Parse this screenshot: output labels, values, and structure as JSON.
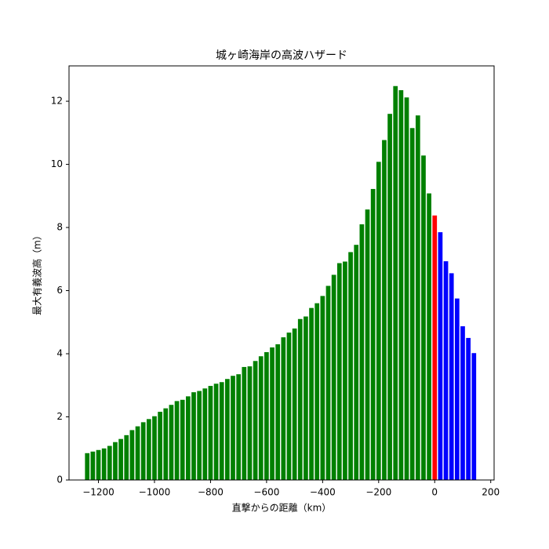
{
  "chart_data": {
    "type": "bar",
    "title": "城ヶ崎海岸の高波ハザード",
    "x_label": "直撃からの距離（km）",
    "y_label": "最大有義波高（m）",
    "series": [
      {
        "name": "green",
        "color": "#008000",
        "x": [
          -1240,
          -1220,
          -1200,
          -1180,
          -1160,
          -1140,
          -1120,
          -1100,
          -1080,
          -1060,
          -1040,
          -1020,
          -1000,
          -980,
          -960,
          -940,
          -920,
          -900,
          -880,
          -860,
          -840,
          -820,
          -800,
          -780,
          -760,
          -740,
          -720,
          -700,
          -680,
          -660,
          -640,
          -620,
          -600,
          -580,
          -560,
          -540,
          -520,
          -500,
          -480,
          -460,
          -440,
          -420,
          -400,
          -380,
          -360,
          -340,
          -320,
          -300,
          -280,
          -260,
          -240,
          -220,
          -200,
          -180,
          -160,
          -140,
          -120,
          -100,
          -80,
          -60,
          -40,
          -20
        ],
        "values": [
          0.85,
          0.9,
          0.95,
          1.0,
          1.08,
          1.2,
          1.3,
          1.42,
          1.58,
          1.7,
          1.83,
          1.93,
          2.02,
          2.16,
          2.27,
          2.38,
          2.5,
          2.54,
          2.65,
          2.78,
          2.82,
          2.9,
          2.98,
          3.05,
          3.1,
          3.2,
          3.3,
          3.35,
          3.58,
          3.6,
          3.77,
          3.92,
          4.05,
          4.2,
          4.3,
          4.52,
          4.67,
          4.8,
          5.1,
          5.18,
          5.45,
          5.6,
          5.83,
          6.15,
          6.5,
          6.87,
          6.92,
          7.22,
          7.45,
          8.1,
          8.57,
          9.22,
          10.08,
          10.77,
          11.6,
          12.48,
          12.35,
          12.12,
          11.15,
          11.55,
          10.28,
          9.08
        ]
      },
      {
        "name": "red",
        "color": "#ff0000",
        "x": [
          0
        ],
        "values": [
          8.38
        ]
      },
      {
        "name": "blue",
        "color": "#0000ff",
        "x": [
          20,
          40,
          60,
          80,
          100,
          120,
          140
        ],
        "values": [
          7.85,
          6.93,
          6.55,
          5.75,
          4.87,
          4.5,
          4.02
        ]
      }
    ],
    "bar_width": 16,
    "xlim": [
      -1305,
      212
    ],
    "ylim": [
      0,
      13.12
    ],
    "xticks": [
      {
        "value": -1200,
        "label": "−1200"
      },
      {
        "value": -1000,
        "label": "−1000"
      },
      {
        "value": -800,
        "label": "−800"
      },
      {
        "value": -600,
        "label": "−600"
      },
      {
        "value": -400,
        "label": "−400"
      },
      {
        "value": -200,
        "label": "−200"
      },
      0,
      200
    ],
    "yticks": [
      0,
      2,
      4,
      6,
      8,
      10,
      12
    ]
  }
}
